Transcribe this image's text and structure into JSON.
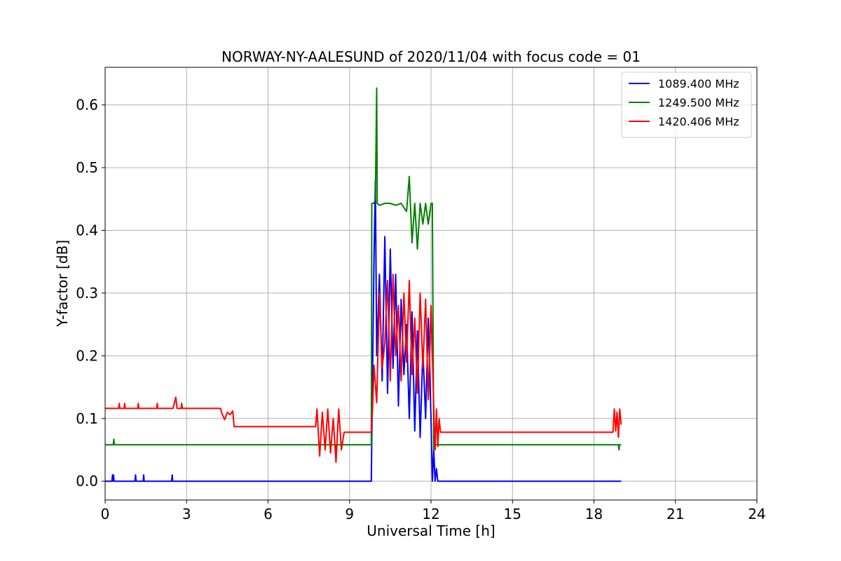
{
  "chart_data": {
    "type": "line",
    "title": "NORWAY-NY-AALESUND of 2020/11/04 with focus code = 01",
    "xlabel": "Universal Time [h]",
    "ylabel": "Y-factor [dB]",
    "xlim": [
      0,
      24
    ],
    "ylim": [
      -0.03,
      0.66
    ],
    "xticks": [
      0,
      3,
      6,
      9,
      12,
      15,
      18,
      21,
      24
    ],
    "xtick_labels": [
      "0",
      "3",
      "6",
      "9",
      "12",
      "15",
      "18",
      "21",
      "24"
    ],
    "yticks": [
      0.0,
      0.1,
      0.2,
      0.3,
      0.4,
      0.5,
      0.6
    ],
    "ytick_labels": [
      "0.0",
      "0.1",
      "0.2",
      "0.3",
      "0.4",
      "0.5",
      "0.6"
    ],
    "grid": true,
    "legend_position": "top-right",
    "series": [
      {
        "name": "1089.400 MHz",
        "color": "#0000ff",
        "x": [
          0.0,
          0.25,
          0.27,
          0.29,
          0.31,
          0.33,
          0.35,
          1.1,
          1.12,
          1.14,
          1.4,
          1.42,
          1.44,
          2.45,
          2.47,
          2.49,
          9.8,
          9.85,
          9.9,
          9.95,
          10.0,
          10.1,
          10.2,
          10.3,
          10.4,
          10.5,
          10.6,
          10.7,
          10.8,
          10.9,
          11.0,
          11.1,
          11.2,
          11.3,
          11.4,
          11.5,
          11.6,
          11.7,
          11.8,
          11.9,
          12.0,
          12.05,
          12.1,
          12.15,
          12.2,
          12.25,
          12.3,
          19.0
        ],
        "y": [
          0.0,
          0.0,
          0.01,
          0.0,
          0.01,
          0.0,
          0.0,
          0.0,
          0.01,
          0.0,
          0.0,
          0.01,
          0.0,
          0.0,
          0.01,
          0.0,
          0.0,
          0.18,
          0.35,
          0.48,
          0.2,
          0.33,
          0.16,
          0.39,
          0.14,
          0.37,
          0.18,
          0.33,
          0.12,
          0.29,
          0.17,
          0.25,
          0.1,
          0.27,
          0.08,
          0.24,
          0.07,
          0.21,
          0.1,
          0.26,
          0.1,
          0.0,
          0.05,
          0.0,
          0.02,
          0.0,
          0.0,
          0.0
        ]
      },
      {
        "name": "1249.500 MHz",
        "color": "#008000",
        "x": [
          0.0,
          0.3,
          0.32,
          0.34,
          8.5,
          8.52,
          8.54,
          9.8,
          9.82,
          9.9,
          9.95,
          10.0,
          10.02,
          10.1,
          10.3,
          10.5,
          10.7,
          10.9,
          11.1,
          11.2,
          11.3,
          11.4,
          11.5,
          11.6,
          11.7,
          11.8,
          11.9,
          12.0,
          12.05,
          12.1,
          12.12,
          18.9,
          18.92,
          18.94,
          19.0
        ],
        "y": [
          0.058,
          0.058,
          0.067,
          0.058,
          0.058,
          0.05,
          0.058,
          0.058,
          0.443,
          0.443,
          0.45,
          0.627,
          0.443,
          0.44,
          0.443,
          0.443,
          0.44,
          0.443,
          0.43,
          0.486,
          0.38,
          0.443,
          0.37,
          0.443,
          0.41,
          0.443,
          0.41,
          0.443,
          0.443,
          0.05,
          0.058,
          0.058,
          0.05,
          0.058,
          0.058
        ]
      },
      {
        "name": "1420.406 MHz",
        "color": "#ff0000",
        "x": [
          0.0,
          0.5,
          0.52,
          0.54,
          0.7,
          0.72,
          0.74,
          1.2,
          1.22,
          1.24,
          1.9,
          1.92,
          1.94,
          2.5,
          2.55,
          2.6,
          2.65,
          2.8,
          2.82,
          2.84,
          4.25,
          4.3,
          4.4,
          4.5,
          4.6,
          4.7,
          4.75,
          7.75,
          7.8,
          7.9,
          8.0,
          8.1,
          8.2,
          8.3,
          8.4,
          8.5,
          8.6,
          8.7,
          8.8,
          9.8,
          9.85,
          9.9,
          10.0,
          10.1,
          10.2,
          10.3,
          10.4,
          10.5,
          10.6,
          10.7,
          10.8,
          10.9,
          11.0,
          11.1,
          11.2,
          11.3,
          11.4,
          11.5,
          11.6,
          11.7,
          11.8,
          11.9,
          12.0,
          12.1,
          12.15,
          12.2,
          12.25,
          12.3,
          12.35,
          18.7,
          18.75,
          18.8,
          18.85,
          18.9,
          18.95,
          19.0
        ],
        "y": [
          0.116,
          0.116,
          0.124,
          0.116,
          0.116,
          0.124,
          0.116,
          0.116,
          0.124,
          0.116,
          0.116,
          0.124,
          0.116,
          0.116,
          0.124,
          0.134,
          0.116,
          0.116,
          0.124,
          0.116,
          0.116,
          0.108,
          0.098,
          0.11,
          0.106,
          0.112,
          0.087,
          0.087,
          0.115,
          0.04,
          0.11,
          0.05,
          0.115,
          0.045,
          0.1,
          0.03,
          0.115,
          0.05,
          0.078,
          0.078,
          0.12,
          0.185,
          0.125,
          0.3,
          0.18,
          0.22,
          0.32,
          0.16,
          0.33,
          0.2,
          0.28,
          0.16,
          0.3,
          0.19,
          0.32,
          0.17,
          0.26,
          0.14,
          0.3,
          0.18,
          0.29,
          0.13,
          0.28,
          0.12,
          0.05,
          0.115,
          0.055,
          0.1,
          0.078,
          0.078,
          0.115,
          0.08,
          0.11,
          0.07,
          0.115,
          0.09
        ]
      }
    ]
  }
}
